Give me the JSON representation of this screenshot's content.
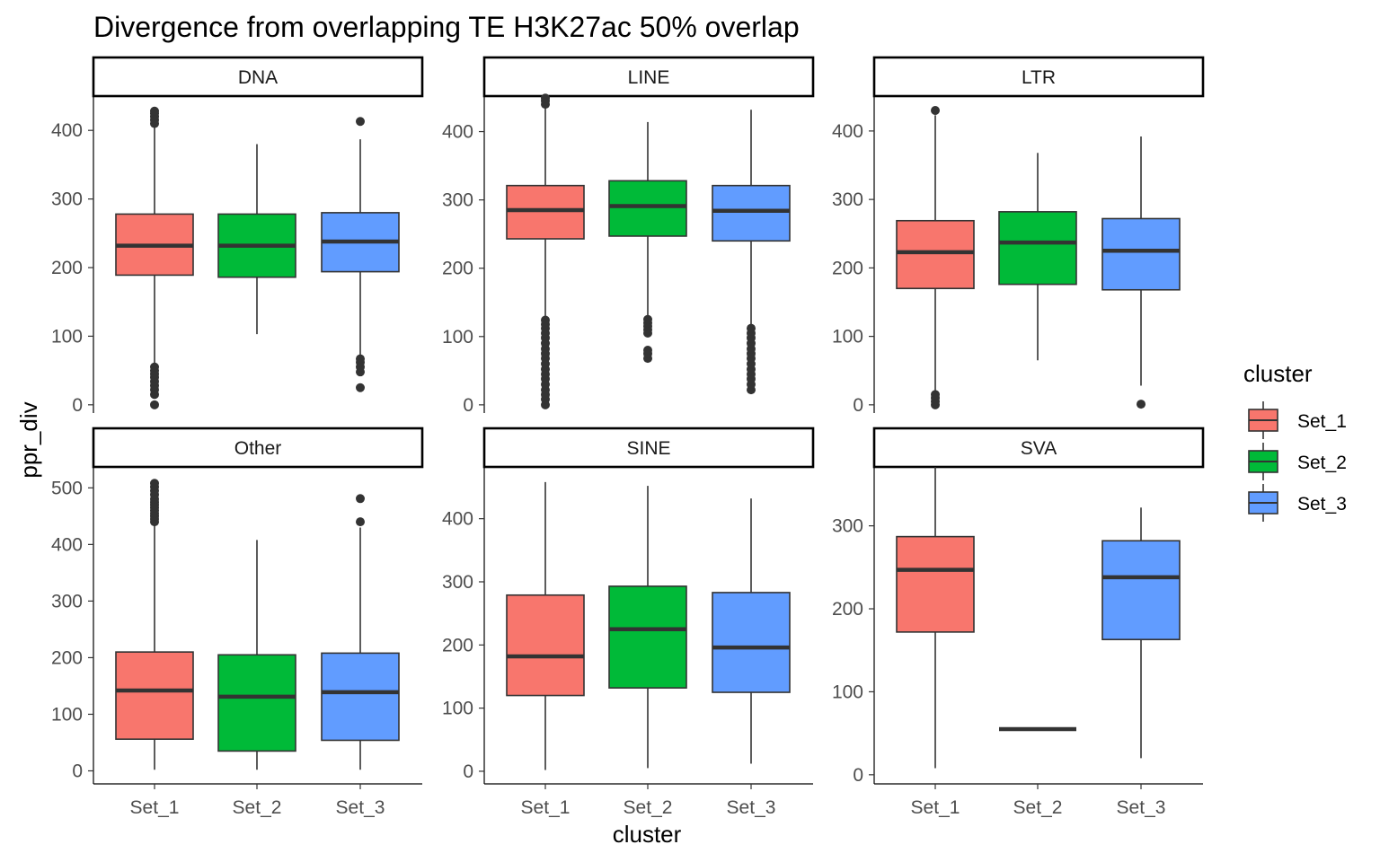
{
  "chart_data": {
    "type": "boxplot",
    "title": "Divergence from overlapping TE H3K27ac 50% overlap",
    "xlabel": "cluster",
    "ylabel": "ppr_div",
    "categories": [
      "Set_1",
      "Set_2",
      "Set_3"
    ],
    "legend": {
      "title": "cluster",
      "placement": "right",
      "entries": [
        {
          "label": "Set_1",
          "color": "#F8766D"
        },
        {
          "label": "Set_2",
          "color": "#00BA38"
        },
        {
          "label": "Set_3",
          "color": "#619CFF"
        }
      ]
    },
    "panels": [
      {
        "name": "DNA",
        "ylim": [
          -12,
          450
        ],
        "yticks": [
          0,
          100,
          200,
          300,
          400
        ],
        "boxes": [
          {
            "category": "Set_1",
            "min": 60,
            "q1": 189,
            "median": 232,
            "q3": 278,
            "max": 405,
            "outliers": [
              0,
              15,
              22,
              28,
              34,
              40,
              45,
              50,
              55,
              410,
              415,
              420,
              425,
              428
            ]
          },
          {
            "category": "Set_2",
            "min": 103,
            "q1": 186,
            "median": 232,
            "q3": 278,
            "max": 380,
            "outliers": []
          },
          {
            "category": "Set_3",
            "min": 70,
            "q1": 194,
            "median": 238,
            "q3": 280,
            "max": 387,
            "outliers": [
              25,
              48,
              55,
              62,
              67,
              413
            ]
          }
        ]
      },
      {
        "name": "LINE",
        "ylim": [
          -12,
          452
        ],
        "yticks": [
          0,
          100,
          200,
          300,
          400
        ],
        "boxes": [
          {
            "category": "Set_1",
            "min": 128,
            "q1": 243,
            "median": 285,
            "q3": 321,
            "max": 435,
            "outliers": [
              0,
              8,
              15,
              22,
              30,
              38,
              45,
              52,
              60,
              68,
              75,
              82,
              90,
              98,
              105,
              112,
              118,
              124,
              440,
              445,
              449
            ]
          },
          {
            "category": "Set_2",
            "min": 127,
            "q1": 247,
            "median": 291,
            "q3": 328,
            "max": 414,
            "outliers": [
              68,
              75,
              80,
              105,
              110,
              115,
              120,
              125
            ]
          },
          {
            "category": "Set_3",
            "min": 118,
            "q1": 240,
            "median": 284,
            "q3": 321,
            "max": 432,
            "outliers": [
              22,
              30,
              38,
              45,
              52,
              60,
              68,
              75,
              82,
              90,
              98,
              105,
              112
            ]
          }
        ]
      },
      {
        "name": "LTR",
        "ylim": [
          -12,
          451
        ],
        "yticks": [
          0,
          100,
          200,
          300,
          400
        ],
        "boxes": [
          {
            "category": "Set_1",
            "min": 20,
            "q1": 170,
            "median": 223,
            "q3": 269,
            "max": 423,
            "outliers": [
              0,
              5,
              10,
              15,
              430
            ]
          },
          {
            "category": "Set_2",
            "min": 65,
            "q1": 176,
            "median": 237,
            "q3": 282,
            "max": 368,
            "outliers": []
          },
          {
            "category": "Set_3",
            "min": 28,
            "q1": 168,
            "median": 225,
            "q3": 272,
            "max": 392,
            "outliers": [
              1
            ]
          }
        ]
      },
      {
        "name": "Other",
        "ylim": [
          -23,
          537
        ],
        "yticks": [
          0,
          100,
          200,
          300,
          400,
          500
        ],
        "boxes": [
          {
            "category": "Set_1",
            "min": 2,
            "q1": 56,
            "median": 142,
            "q3": 210,
            "max": 435,
            "outliers": [
              440,
              445,
              450,
              455,
              460,
              465,
              470,
              475,
              480,
              488,
              495,
              502,
              508
            ]
          },
          {
            "category": "Set_2",
            "min": 2,
            "q1": 35,
            "median": 131,
            "q3": 205,
            "max": 408,
            "outliers": []
          },
          {
            "category": "Set_3",
            "min": 2,
            "q1": 54,
            "median": 139,
            "q3": 208,
            "max": 430,
            "outliers": [
              440,
              481
            ]
          }
        ]
      },
      {
        "name": "SINE",
        "ylim": [
          -20,
          482
        ],
        "yticks": [
          0,
          100,
          200,
          300,
          400
        ],
        "boxes": [
          {
            "category": "Set_1",
            "min": 2,
            "q1": 120,
            "median": 182,
            "q3": 279,
            "max": 458,
            "outliers": []
          },
          {
            "category": "Set_2",
            "min": 5,
            "q1": 132,
            "median": 225,
            "q3": 293,
            "max": 452,
            "outliers": []
          },
          {
            "category": "Set_3",
            "min": 12,
            "q1": 125,
            "median": 196,
            "q3": 283,
            "max": 432,
            "outliers": []
          }
        ]
      },
      {
        "name": "SVA",
        "ylim": [
          -11,
          371
        ],
        "yticks": [
          0,
          100,
          200,
          300
        ],
        "boxes": [
          {
            "category": "Set_1",
            "min": 8,
            "q1": 172,
            "median": 247,
            "q3": 287,
            "max": 371,
            "outliers": []
          },
          {
            "category": "Set_2",
            "min": 55,
            "q1": 55,
            "median": 55,
            "q3": 55,
            "max": 55,
            "outliers": []
          },
          {
            "category": "Set_3",
            "min": 20,
            "q1": 163,
            "median": 238,
            "q3": 282,
            "max": 322,
            "outliers": []
          }
        ]
      }
    ]
  }
}
